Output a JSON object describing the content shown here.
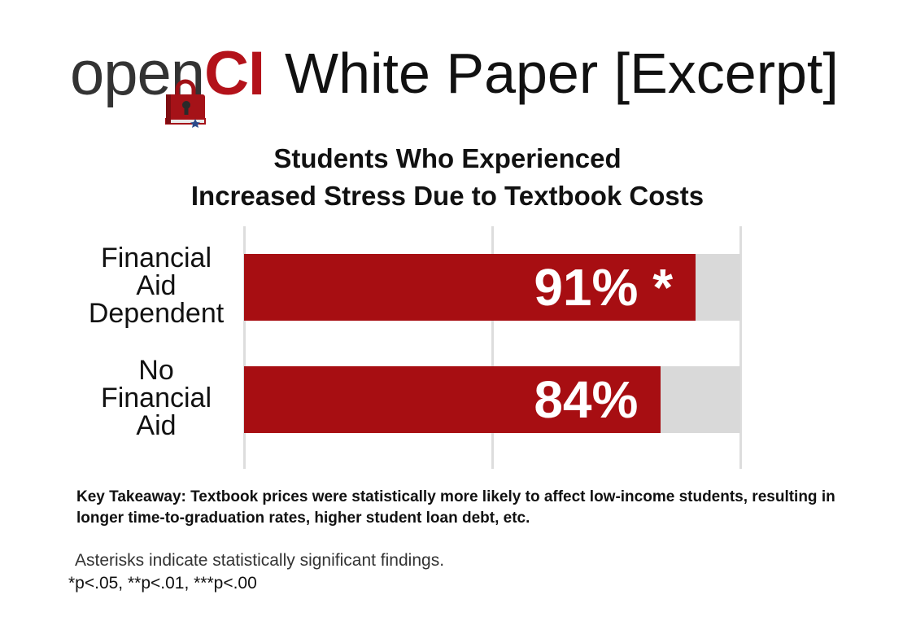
{
  "header": {
    "logo_open": "open",
    "logo_ci": "CI",
    "title": "White Paper [Excerpt]",
    "brand_color": "#b3121a"
  },
  "logo_icon": "book-lock-icon",
  "chart_data": {
    "type": "bar",
    "orientation": "horizontal",
    "title": "Students Who Experienced\nIncreased Stress Due to Textbook Costs",
    "categories": [
      "Financial\nAid\nDependent",
      "No\nFinancial\nAid"
    ],
    "values": [
      91,
      84
    ],
    "value_labels": [
      "91%",
      "84%"
    ],
    "significance": [
      "*",
      ""
    ],
    "xlim": [
      0,
      100
    ],
    "xlabel": "",
    "ylabel": "",
    "grid": true,
    "legend": "none",
    "bar_color": "#a70e12",
    "track_color": "#d9d9d9"
  },
  "notes": {
    "key_takeaway": "Key Takeaway: Textbook prices were statistically more likely to affect low-income students, resulting in longer time-to-graduation rates, higher student loan debt, etc.",
    "footnote_1": "Asterisks indicate statistically significant findings.",
    "footnote_2": "*p<.05, **p<.01, ***p<.00"
  }
}
